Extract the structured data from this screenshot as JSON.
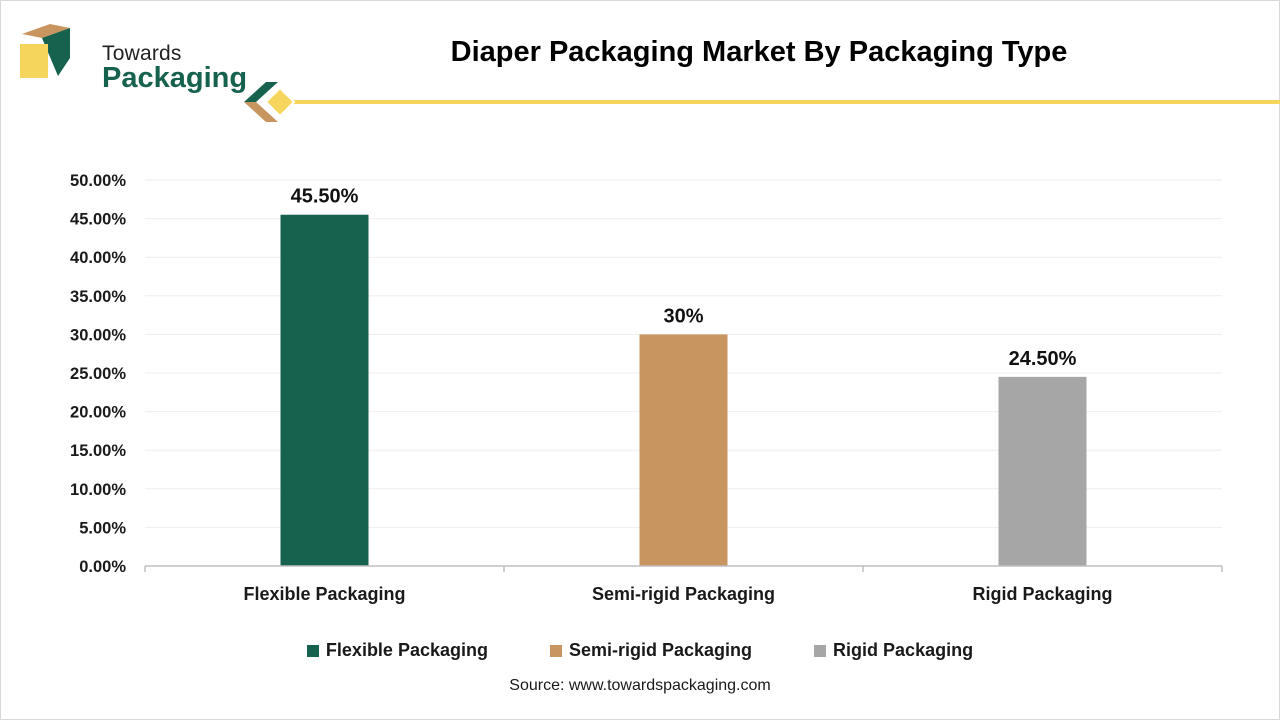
{
  "brand": {
    "line1": "Towards",
    "line2": "Packaging",
    "green": "#17624f",
    "gold": "#c89460",
    "yellow": "#f6d55c"
  },
  "title": "Diaper Packaging Market By Packaging Type",
  "source": "Source: www.towardspackaging.com",
  "chart_data": {
    "type": "bar",
    "title": "Diaper Packaging Market By Packaging Type",
    "xlabel": "",
    "ylabel": "",
    "categories": [
      "Flexible Packaging",
      "Semi-rigid Packaging",
      "Rigid Packaging"
    ],
    "values": [
      45.5,
      30,
      24.5
    ],
    "data_labels": [
      "45.50%",
      "30%",
      "24.50%"
    ],
    "colors": [
      "#17624f",
      "#c89460",
      "#a6a6a6"
    ],
    "ylim": [
      0,
      50
    ],
    "ytick_values": [
      0,
      5,
      10,
      15,
      20,
      25,
      30,
      35,
      40,
      45,
      50
    ],
    "ytick_labels": [
      "0.00%",
      "5.00%",
      "10.00%",
      "15.00%",
      "20.00%",
      "25.00%",
      "30.00%",
      "35.00%",
      "40.00%",
      "45.00%",
      "50.00%"
    ],
    "grid": true,
    "legend": {
      "placement": "bottom",
      "entries": [
        "Flexible Packaging",
        "Semi-rigid Packaging",
        "Rigid Packaging"
      ]
    }
  }
}
